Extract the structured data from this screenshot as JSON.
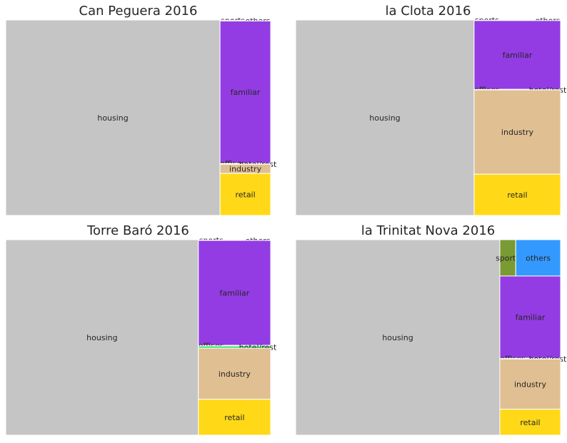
{
  "colors": {
    "housing": "#c5c5c5",
    "familiar": "#933ce3",
    "retail": "#ffd918",
    "industry": "#e0bf92",
    "offices": "#4ac47a",
    "hotel_rest": "#2ee062",
    "sports": "#7a9a33",
    "others": "#3399ff"
  },
  "chart_data": [
    {
      "type": "treemap",
      "title": "Can Peguera 2016",
      "columns": [
        {
          "items": [
            {
              "label": "housing",
              "value": 80.9,
              "color_key": "housing"
            }
          ]
        },
        {
          "items": [
            {
              "label": "sports",
              "value": 0.05,
              "color_key": "sports",
              "label_pos": "edge"
            },
            {
              "label": "others",
              "value": 0.05,
              "color_key": "others",
              "label_pos": "edge"
            },
            {
              "label": "familiar",
              "value": 13.9,
              "color_key": "familiar"
            },
            {
              "label": "offices",
              "value": 0.05,
              "color_key": "offices",
              "label_pos": "edge"
            },
            {
              "label": "hotel/rest",
              "value": 0.05,
              "color_key": "hotel_rest",
              "label_pos": "edge"
            },
            {
              "label": "industry",
              "value": 0.9,
              "color_key": "industry"
            },
            {
              "label": "retail",
              "value": 4.1,
              "color_key": "retail"
            }
          ]
        }
      ]
    },
    {
      "type": "treemap",
      "title": "la Clota 2016",
      "columns": [
        {
          "items": [
            {
              "label": "housing",
              "value": 67.5,
              "color_key": "housing"
            }
          ]
        },
        {
          "items": [
            {
              "label": "sports",
              "value": 0.05,
              "color_key": "sports",
              "label_pos": "edge"
            },
            {
              "label": "others",
              "value": 0.05,
              "color_key": "others",
              "label_pos": "edge"
            },
            {
              "label": "familiar",
              "value": 11.5,
              "color_key": "familiar"
            },
            {
              "label": "offices",
              "value": 0.05,
              "color_key": "offices",
              "label_pos": "edge"
            },
            {
              "label": "hotel/rest",
              "value": 0.05,
              "color_key": "hotel_rest",
              "label_pos": "edge"
            },
            {
              "label": "industry",
              "value": 14.1,
              "color_key": "industry"
            },
            {
              "label": "retail",
              "value": 6.9,
              "color_key": "retail"
            }
          ]
        }
      ]
    },
    {
      "type": "treemap",
      "title": "Torre Baró 2016",
      "columns": [
        {
          "items": [
            {
              "label": "housing",
              "value": 72.5,
              "color_key": "housing"
            }
          ]
        },
        {
          "items": [
            {
              "label": "sports",
              "value": 0.05,
              "color_key": "sports",
              "label_pos": "edge"
            },
            {
              "label": "others",
              "value": 0.05,
              "color_key": "others",
              "label_pos": "edge"
            },
            {
              "label": "familiar",
              "value": 14.6,
              "color_key": "familiar"
            },
            {
              "label": "offices",
              "value": 0.1,
              "color_key": "offices",
              "label_pos": "edge"
            },
            {
              "label": "hotel/rest",
              "value": 0.3,
              "color_key": "hotel_rest",
              "label_pos": "edge"
            },
            {
              "label": "industry",
              "value": 7.1,
              "color_key": "industry"
            },
            {
              "label": "retail",
              "value": 5.0,
              "color_key": "retail"
            }
          ]
        }
      ]
    },
    {
      "type": "treemap",
      "title": "la Trinitat Nova 2016",
      "columns": [
        {
          "items": [
            {
              "label": "housing",
              "value": 76.0,
              "color_key": "housing"
            }
          ]
        },
        {
          "items": [
            {
              "label": "sports",
              "value": 1.1,
              "color_key": "sports",
              "row": 0
            },
            {
              "label": "others",
              "value": 3.1,
              "color_key": "others",
              "row": 0
            },
            {
              "label": "familiar",
              "value": 9.5,
              "color_key": "familiar"
            },
            {
              "label": "offices",
              "value": 0.05,
              "color_key": "offices",
              "label_pos": "edge"
            },
            {
              "label": "hotel/rest",
              "value": 0.05,
              "color_key": "hotel_rest",
              "label_pos": "edge"
            },
            {
              "label": "industry",
              "value": 5.8,
              "color_key": "industry"
            },
            {
              "label": "retail",
              "value": 3.0,
              "color_key": "retail"
            }
          ]
        }
      ]
    }
  ]
}
